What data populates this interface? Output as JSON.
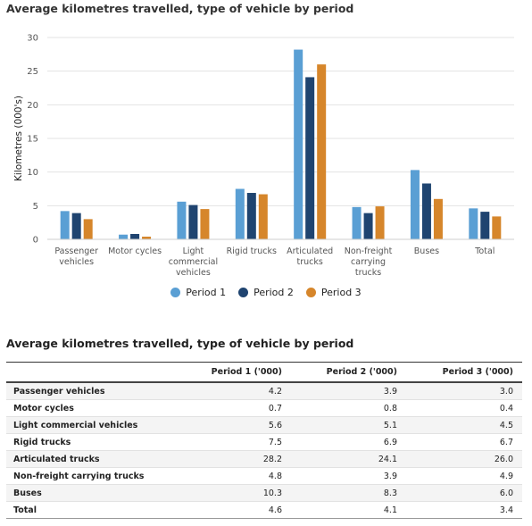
{
  "chart": {
    "title": "Average kilometres travelled, type of vehicle by period"
  },
  "chart_data": {
    "type": "bar",
    "title": "Average kilometres travelled, type of vehicle by period",
    "xlabel": "",
    "ylabel": "Kilometres (000's)",
    "ylim": [
      0,
      30
    ],
    "yticks": [
      0,
      5,
      10,
      15,
      20,
      25,
      30
    ],
    "grid": true,
    "legend_position": "bottom",
    "categories": [
      [
        "Passenger",
        "vehicles"
      ],
      [
        "Motor cycles"
      ],
      [
        "Light",
        "commercial",
        "vehicles"
      ],
      [
        "Rigid trucks"
      ],
      [
        "Articulated",
        "trucks"
      ],
      [
        "Non-freight",
        "carrying",
        "trucks"
      ],
      [
        "Buses"
      ],
      [
        "Total"
      ]
    ],
    "series": [
      {
        "name": "Period 1",
        "color": "#5a9fd4",
        "values": [
          4.2,
          0.7,
          5.6,
          7.5,
          28.2,
          4.8,
          10.3,
          4.6
        ]
      },
      {
        "name": "Period 2",
        "color": "#1f4470",
        "values": [
          3.9,
          0.8,
          5.1,
          6.9,
          24.1,
          3.9,
          8.3,
          4.1
        ]
      },
      {
        "name": "Period 3",
        "color": "#d6862b",
        "values": [
          3.0,
          0.4,
          4.5,
          6.7,
          26.0,
          4.9,
          6.0,
          3.4
        ]
      }
    ]
  },
  "table": {
    "title": "Average kilometres travelled, type of vehicle by period",
    "headers": [
      "",
      "Period 1 ('000)",
      "Period 2 ('000)",
      "Period 3 ('000)"
    ],
    "rows": [
      [
        "Passenger vehicles",
        "4.2",
        "3.9",
        "3.0"
      ],
      [
        "Motor cycles",
        "0.7",
        "0.8",
        "0.4"
      ],
      [
        "Light commercial vehicles",
        "5.6",
        "5.1",
        "4.5"
      ],
      [
        "Rigid trucks",
        "7.5",
        "6.9",
        "6.7"
      ],
      [
        "Articulated trucks",
        "28.2",
        "24.1",
        "26.0"
      ],
      [
        "Non-freight carrying trucks",
        "4.8",
        "3.9",
        "4.9"
      ],
      [
        "Buses",
        "10.3",
        "8.3",
        "6.0"
      ],
      [
        "Total",
        "4.6",
        "4.1",
        "3.4"
      ]
    ]
  }
}
